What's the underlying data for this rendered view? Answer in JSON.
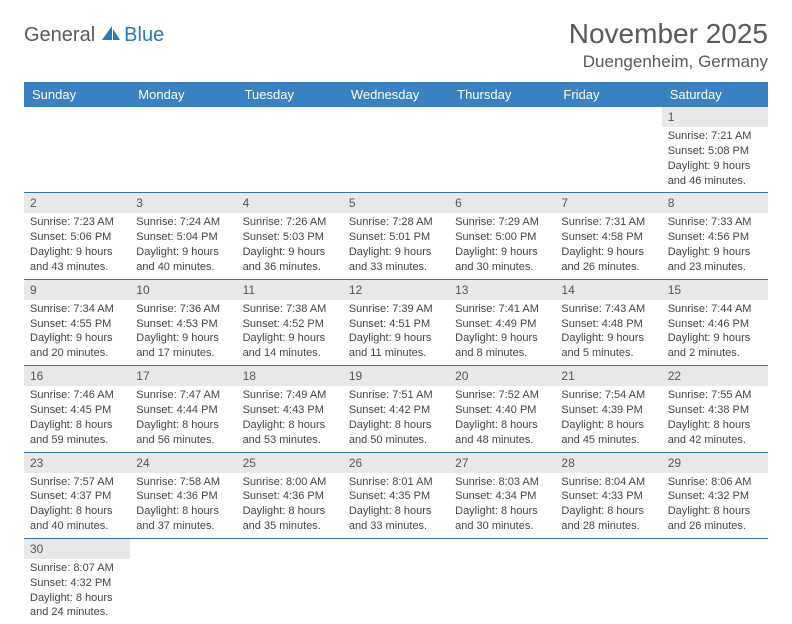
{
  "logo": {
    "part1": "General",
    "part2": "Blue"
  },
  "title": "November 2025",
  "location": "Duengenheim, Germany",
  "colors": {
    "header_bg": "#3a81c2",
    "row_divider": "#2e75b6",
    "daynum_bg": "#e8e8e8",
    "text": "#444444",
    "title_text": "#595959"
  },
  "weekdays": [
    "Sunday",
    "Monday",
    "Tuesday",
    "Wednesday",
    "Thursday",
    "Friday",
    "Saturday"
  ],
  "weeks": [
    [
      null,
      null,
      null,
      null,
      null,
      null,
      {
        "n": "1",
        "sr": "Sunrise: 7:21 AM",
        "ss": "Sunset: 5:08 PM",
        "dl": "Daylight: 9 hours and 46 minutes."
      }
    ],
    [
      {
        "n": "2",
        "sr": "Sunrise: 7:23 AM",
        "ss": "Sunset: 5:06 PM",
        "dl": "Daylight: 9 hours and 43 minutes."
      },
      {
        "n": "3",
        "sr": "Sunrise: 7:24 AM",
        "ss": "Sunset: 5:04 PM",
        "dl": "Daylight: 9 hours and 40 minutes."
      },
      {
        "n": "4",
        "sr": "Sunrise: 7:26 AM",
        "ss": "Sunset: 5:03 PM",
        "dl": "Daylight: 9 hours and 36 minutes."
      },
      {
        "n": "5",
        "sr": "Sunrise: 7:28 AM",
        "ss": "Sunset: 5:01 PM",
        "dl": "Daylight: 9 hours and 33 minutes."
      },
      {
        "n": "6",
        "sr": "Sunrise: 7:29 AM",
        "ss": "Sunset: 5:00 PM",
        "dl": "Daylight: 9 hours and 30 minutes."
      },
      {
        "n": "7",
        "sr": "Sunrise: 7:31 AM",
        "ss": "Sunset: 4:58 PM",
        "dl": "Daylight: 9 hours and 26 minutes."
      },
      {
        "n": "8",
        "sr": "Sunrise: 7:33 AM",
        "ss": "Sunset: 4:56 PM",
        "dl": "Daylight: 9 hours and 23 minutes."
      }
    ],
    [
      {
        "n": "9",
        "sr": "Sunrise: 7:34 AM",
        "ss": "Sunset: 4:55 PM",
        "dl": "Daylight: 9 hours and 20 minutes."
      },
      {
        "n": "10",
        "sr": "Sunrise: 7:36 AM",
        "ss": "Sunset: 4:53 PM",
        "dl": "Daylight: 9 hours and 17 minutes."
      },
      {
        "n": "11",
        "sr": "Sunrise: 7:38 AM",
        "ss": "Sunset: 4:52 PM",
        "dl": "Daylight: 9 hours and 14 minutes."
      },
      {
        "n": "12",
        "sr": "Sunrise: 7:39 AM",
        "ss": "Sunset: 4:51 PM",
        "dl": "Daylight: 9 hours and 11 minutes."
      },
      {
        "n": "13",
        "sr": "Sunrise: 7:41 AM",
        "ss": "Sunset: 4:49 PM",
        "dl": "Daylight: 9 hours and 8 minutes."
      },
      {
        "n": "14",
        "sr": "Sunrise: 7:43 AM",
        "ss": "Sunset: 4:48 PM",
        "dl": "Daylight: 9 hours and 5 minutes."
      },
      {
        "n": "15",
        "sr": "Sunrise: 7:44 AM",
        "ss": "Sunset: 4:46 PM",
        "dl": "Daylight: 9 hours and 2 minutes."
      }
    ],
    [
      {
        "n": "16",
        "sr": "Sunrise: 7:46 AM",
        "ss": "Sunset: 4:45 PM",
        "dl": "Daylight: 8 hours and 59 minutes."
      },
      {
        "n": "17",
        "sr": "Sunrise: 7:47 AM",
        "ss": "Sunset: 4:44 PM",
        "dl": "Daylight: 8 hours and 56 minutes."
      },
      {
        "n": "18",
        "sr": "Sunrise: 7:49 AM",
        "ss": "Sunset: 4:43 PM",
        "dl": "Daylight: 8 hours and 53 minutes."
      },
      {
        "n": "19",
        "sr": "Sunrise: 7:51 AM",
        "ss": "Sunset: 4:42 PM",
        "dl": "Daylight: 8 hours and 50 minutes."
      },
      {
        "n": "20",
        "sr": "Sunrise: 7:52 AM",
        "ss": "Sunset: 4:40 PM",
        "dl": "Daylight: 8 hours and 48 minutes."
      },
      {
        "n": "21",
        "sr": "Sunrise: 7:54 AM",
        "ss": "Sunset: 4:39 PM",
        "dl": "Daylight: 8 hours and 45 minutes."
      },
      {
        "n": "22",
        "sr": "Sunrise: 7:55 AM",
        "ss": "Sunset: 4:38 PM",
        "dl": "Daylight: 8 hours and 42 minutes."
      }
    ],
    [
      {
        "n": "23",
        "sr": "Sunrise: 7:57 AM",
        "ss": "Sunset: 4:37 PM",
        "dl": "Daylight: 8 hours and 40 minutes."
      },
      {
        "n": "24",
        "sr": "Sunrise: 7:58 AM",
        "ss": "Sunset: 4:36 PM",
        "dl": "Daylight: 8 hours and 37 minutes."
      },
      {
        "n": "25",
        "sr": "Sunrise: 8:00 AM",
        "ss": "Sunset: 4:36 PM",
        "dl": "Daylight: 8 hours and 35 minutes."
      },
      {
        "n": "26",
        "sr": "Sunrise: 8:01 AM",
        "ss": "Sunset: 4:35 PM",
        "dl": "Daylight: 8 hours and 33 minutes."
      },
      {
        "n": "27",
        "sr": "Sunrise: 8:03 AM",
        "ss": "Sunset: 4:34 PM",
        "dl": "Daylight: 8 hours and 30 minutes."
      },
      {
        "n": "28",
        "sr": "Sunrise: 8:04 AM",
        "ss": "Sunset: 4:33 PM",
        "dl": "Daylight: 8 hours and 28 minutes."
      },
      {
        "n": "29",
        "sr": "Sunrise: 8:06 AM",
        "ss": "Sunset: 4:32 PM",
        "dl": "Daylight: 8 hours and 26 minutes."
      }
    ],
    [
      {
        "n": "30",
        "sr": "Sunrise: 8:07 AM",
        "ss": "Sunset: 4:32 PM",
        "dl": "Daylight: 8 hours and 24 minutes."
      },
      null,
      null,
      null,
      null,
      null,
      null
    ]
  ]
}
